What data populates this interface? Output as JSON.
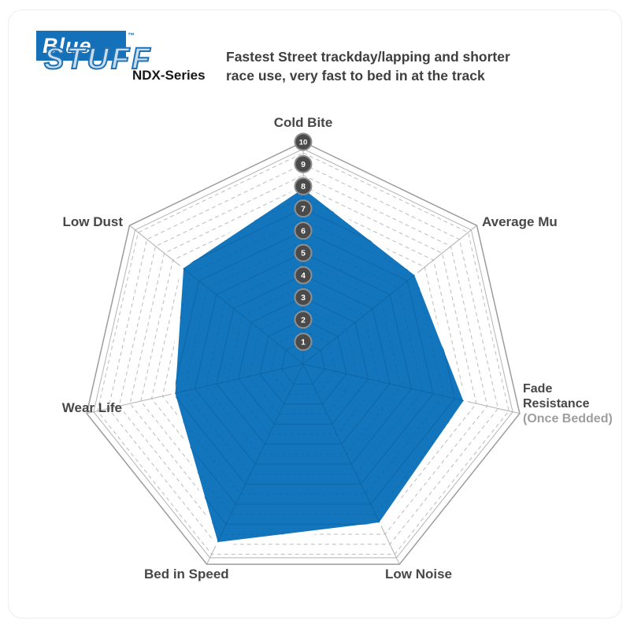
{
  "header": {
    "logo": {
      "brand_top": "Blue",
      "trademark": "™",
      "brand_bottom": "STUFF",
      "series_label": "NDX-Series",
      "brand_color": "#1470b8"
    },
    "description_line1": "Fastest Street trackday/lapping and shorter",
    "description_line2": "race use, very fast to bed in at the track"
  },
  "chart_data": {
    "type": "radar",
    "direction": "clockwise-from-top",
    "categories": [
      "Cold Bite",
      "Average Mu",
      "Fade Resistance (Once Bedded)",
      "Low Noise",
      "Bed in Speed",
      "Wear Life",
      "Low Dust"
    ],
    "values": [
      8,
      6.5,
      7.5,
      8,
      9,
      6,
      7
    ],
    "scale": {
      "min": 0,
      "max": 10,
      "tick_labels_top_to_bottom": [
        "10",
        "9",
        "8",
        "7",
        "6",
        "5",
        "4",
        "3",
        "2",
        "1"
      ]
    },
    "grid": {
      "rings": 10,
      "style": "dashed rings with double solid outer border",
      "color": "#bcbcbc",
      "outer_color": "#9c9c9c",
      "inner_line_color": "#0d65a3"
    },
    "series_fill_color": "#1376bd",
    "tick_circle": {
      "fill": "#4a4a4a",
      "stroke": "#8f8f8f",
      "text_color": "#ffffff"
    },
    "axis_labels": {
      "cold_bite": "Cold Bite",
      "average_mu": "Average Mu",
      "fade_line1": "Fade",
      "fade_line2": "Resistance",
      "fade_line3": "(Once Bedded)",
      "low_noise": "Low Noise",
      "bed_in_speed": "Bed in Speed",
      "wear_life": "Wear Life",
      "low_dust": "Low Dust"
    }
  }
}
